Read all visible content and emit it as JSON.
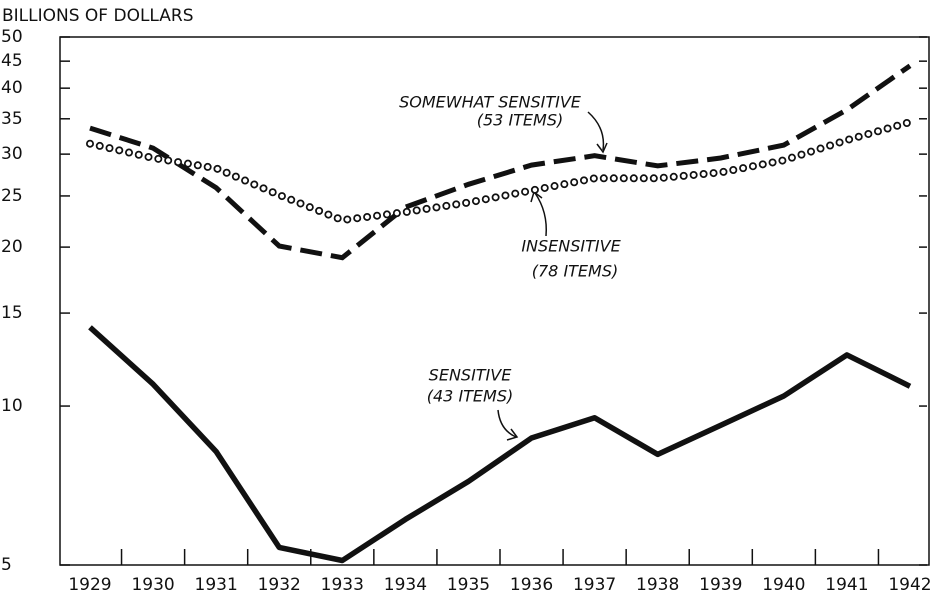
{
  "chart_data": {
    "type": "line",
    "y_axis_label": "BILLIONS OF DOLLARS",
    "log_scale": true,
    "categories": [
      "1929",
      "1930",
      "1931",
      "1932",
      "1933",
      "1934",
      "1935",
      "1936",
      "1937",
      "1938",
      "1939",
      "1940",
      "1941",
      "1942"
    ],
    "series": [
      {
        "name": "SOMEWHAT SENSITIVE",
        "note": "(53 ITEMS)",
        "style": "dashed",
        "color": "#111111",
        "values": [
          33.6,
          30.8,
          25.9,
          20.1,
          19.1,
          23.8,
          26.3,
          28.6,
          29.8,
          28.5,
          29.5,
          31.2,
          36.4,
          44.1
        ]
      },
      {
        "name": "INSENSITIVE",
        "note": "(78 ITEMS)",
        "style": "circles",
        "color": "#111111",
        "values": [
          31.4,
          29.5,
          28.2,
          25.1,
          22.5,
          23.3,
          24.3,
          25.6,
          27.0,
          27.0,
          27.7,
          29.2,
          31.9,
          34.5
        ]
      },
      {
        "name": "SENSITIVE",
        "note": "(43 ITEMS)",
        "style": "solid",
        "color": "#111111",
        "values": [
          14.1,
          11.0,
          8.2,
          5.4,
          5.1,
          6.1,
          7.2,
          8.7,
          9.5,
          8.1,
          9.2,
          10.45,
          12.5,
          10.9
        ]
      }
    ],
    "ylim": [
      5,
      50
    ],
    "yticks": [
      5,
      10,
      15,
      20,
      25,
      30,
      35,
      40,
      45,
      50
    ]
  }
}
